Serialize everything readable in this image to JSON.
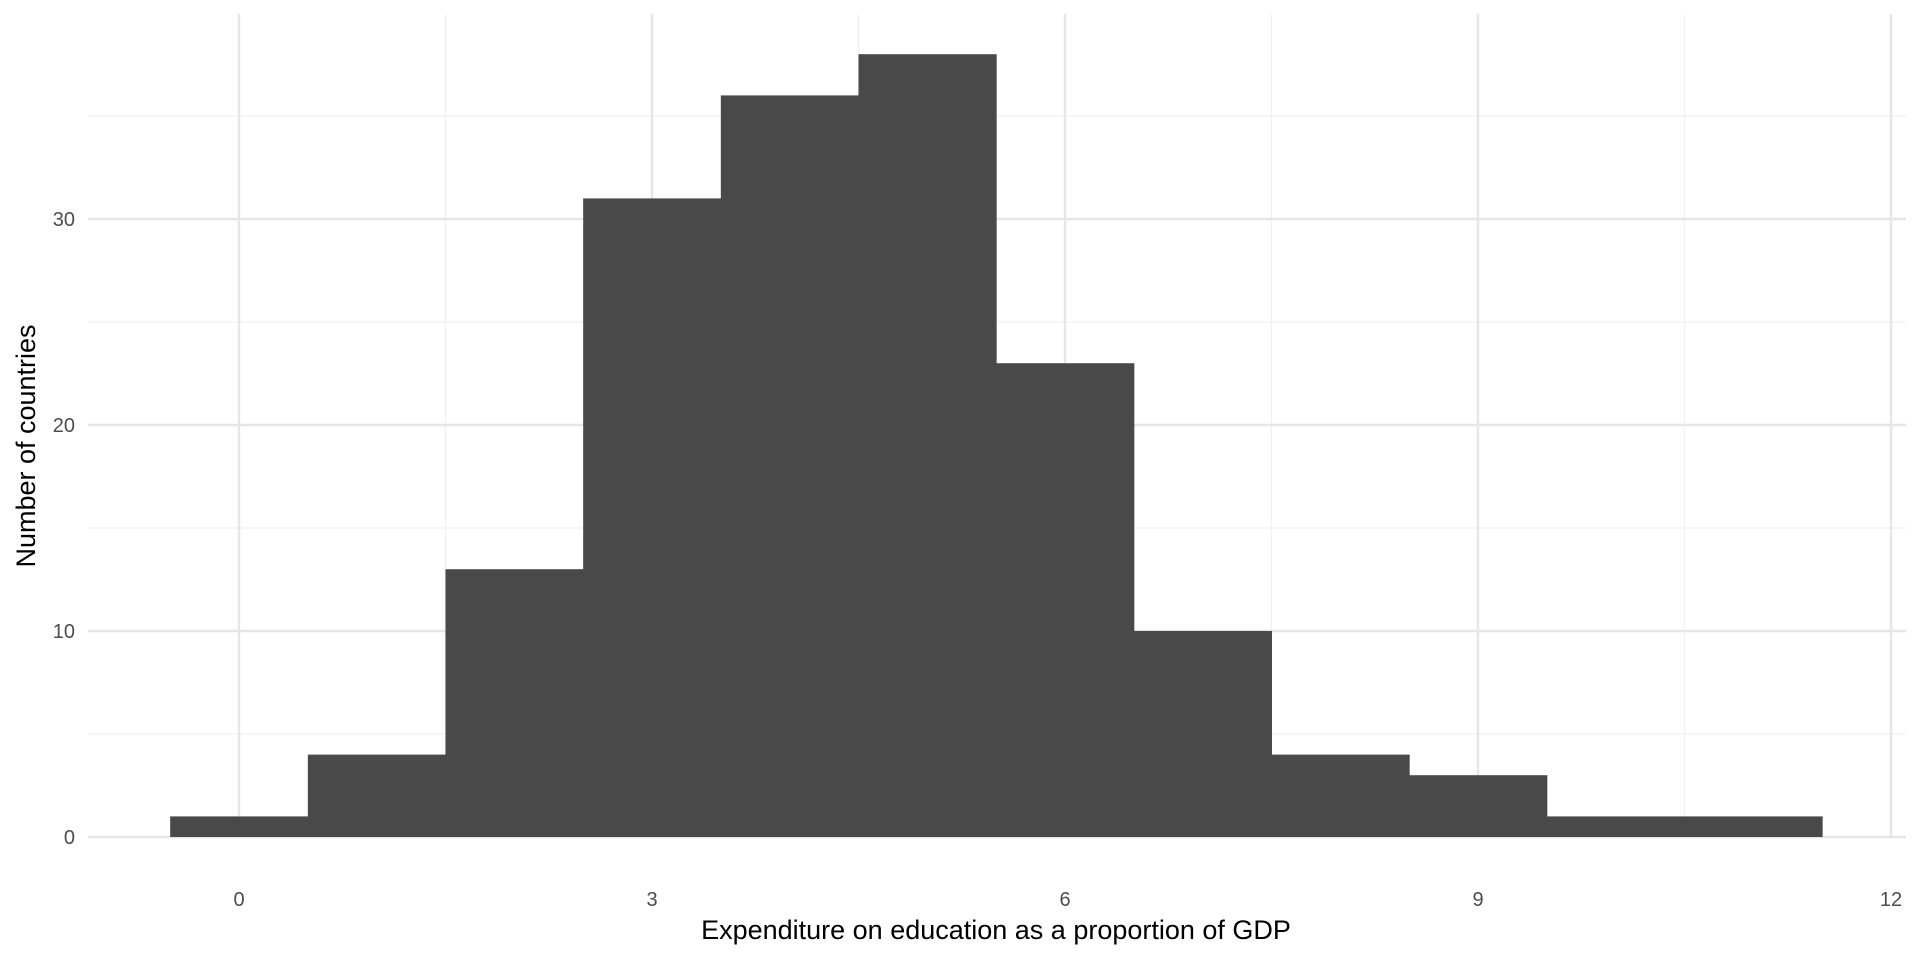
{
  "chart_data": {
    "type": "bar",
    "subtype": "histogram",
    "title": "",
    "xlabel": "Expenditure on education as a proportion of GDP",
    "ylabel": "Number of countries",
    "xlim": [
      -1.1,
      12.1
    ],
    "ylim": [
      0,
      38
    ],
    "x_ticks": [
      0,
      3,
      6,
      9,
      12
    ],
    "y_ticks": [
      0,
      10,
      20,
      30
    ],
    "grid": true,
    "legend": "none",
    "bar_color": "#494949",
    "bins": [
      {
        "x0": -0.5,
        "x1": 0.5,
        "count": 1
      },
      {
        "x0": 0.5,
        "x1": 1.5,
        "count": 4
      },
      {
        "x0": 1.5,
        "x1": 2.5,
        "count": 13
      },
      {
        "x0": 2.5,
        "x1": 3.5,
        "count": 31
      },
      {
        "x0": 3.5,
        "x1": 4.5,
        "count": 36
      },
      {
        "x0": 4.5,
        "x1": 5.5,
        "count": 38
      },
      {
        "x0": 5.5,
        "x1": 6.5,
        "count": 23
      },
      {
        "x0": 6.5,
        "x1": 7.5,
        "count": 10
      },
      {
        "x0": 7.5,
        "x1": 8.5,
        "count": 4
      },
      {
        "x0": 8.5,
        "x1": 9.5,
        "count": 3
      },
      {
        "x0": 9.5,
        "x1": 10.5,
        "count": 1
      },
      {
        "x0": 10.5,
        "x1": 11.5,
        "count": 1
      }
    ]
  }
}
